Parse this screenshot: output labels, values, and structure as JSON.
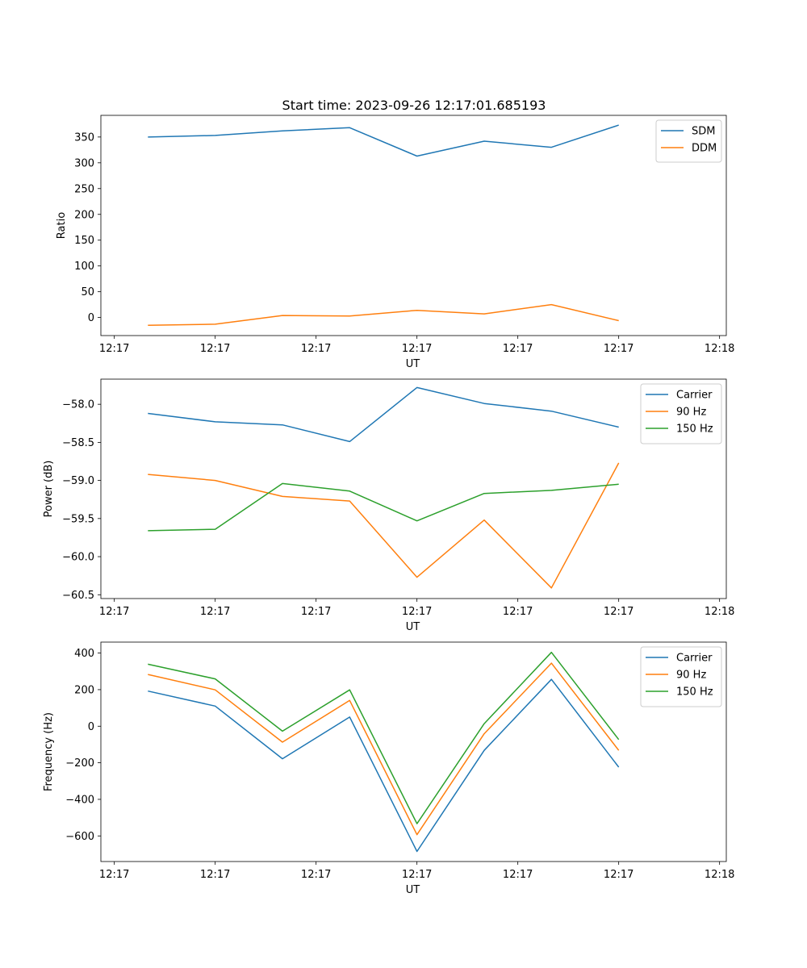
{
  "chart_data": [
    {
      "type": "line",
      "title": "Start time: 2023-09-26 12:17:01.685193",
      "xlabel": "UT",
      "ylabel": "Ratio",
      "xtick_labels": [
        "12:17",
        "12:17",
        "12:17",
        "12:17",
        "12:17",
        "12:17",
        "12:18"
      ],
      "xlim": [
        -0.7,
        8.6
      ],
      "ylim": [
        -35,
        392
      ],
      "yticks": [
        0,
        50,
        100,
        150,
        200,
        250,
        300,
        350
      ],
      "ytick_labels": [
        "0",
        "50",
        "100",
        "150",
        "200",
        "250",
        "300",
        "350"
      ],
      "x": [
        0,
        1,
        2,
        3,
        4,
        5,
        6,
        7
      ],
      "series": [
        {
          "name": "SDM",
          "color": "#1f77b4",
          "values": [
            350,
            353,
            362,
            368,
            313,
            342,
            330,
            373
          ]
        },
        {
          "name": "DDM",
          "color": "#ff7f0e",
          "values": [
            -15,
            -13,
            4,
            3,
            14,
            7,
            25,
            -6
          ]
        }
      ],
      "legend": "top-right",
      "grid": false
    },
    {
      "type": "line",
      "title": "",
      "xlabel": "UT",
      "ylabel": "Power (dB)",
      "xtick_labels": [
        "12:17",
        "12:17",
        "12:17",
        "12:17",
        "12:17",
        "12:17",
        "12:18"
      ],
      "xlim": [
        -0.7,
        8.6
      ],
      "ylim": [
        -60.55,
        -57.67
      ],
      "yticks": [
        -60.5,
        -60.0,
        -59.5,
        -59.0,
        -58.5,
        -58.0
      ],
      "ytick_labels": [
        "−60.5",
        "−60.0",
        "−59.5",
        "−59.0",
        "−58.5",
        "−58.0"
      ],
      "x": [
        0,
        1,
        2,
        3,
        4,
        5,
        6,
        7
      ],
      "series": [
        {
          "name": "Carrier",
          "color": "#1f77b4",
          "values": [
            -58.12,
            -58.23,
            -58.27,
            -58.49,
            -57.78,
            -57.99,
            -58.09,
            -58.3
          ]
        },
        {
          "name": "90 Hz",
          "color": "#ff7f0e",
          "values": [
            -58.92,
            -59.0,
            -59.21,
            -59.27,
            -60.27,
            -59.52,
            -60.41,
            -58.77
          ]
        },
        {
          "name": "150 Hz",
          "color": "#2ca02c",
          "values": [
            -59.66,
            -59.64,
            -59.04,
            -59.14,
            -59.53,
            -59.17,
            -59.13,
            -59.05
          ]
        }
      ],
      "legend": "top-right",
      "grid": false
    },
    {
      "type": "line",
      "title": "",
      "xlabel": "UT",
      "ylabel": "Frequency (Hz)",
      "xtick_labels": [
        "12:17",
        "12:17",
        "12:17",
        "12:17",
        "12:17",
        "12:17",
        "12:18"
      ],
      "xlim": [
        -0.7,
        8.6
      ],
      "ylim": [
        -740,
        460
      ],
      "yticks": [
        -600,
        -400,
        -200,
        0,
        200,
        400
      ],
      "ytick_labels": [
        "−600",
        "−400",
        "−200",
        "0",
        "200",
        "400"
      ],
      "x": [
        0,
        1,
        2,
        3,
        4,
        5,
        6,
        7
      ],
      "series": [
        {
          "name": "Carrier",
          "color": "#1f77b4",
          "values": [
            192,
            110,
            -178,
            50,
            -685,
            -132,
            256,
            -224
          ]
        },
        {
          "name": "90 Hz",
          "color": "#ff7f0e",
          "values": [
            283,
            199,
            -87,
            141,
            -593,
            -41,
            345,
            -132
          ]
        },
        {
          "name": "150 Hz",
          "color": "#2ca02c",
          "values": [
            339,
            259,
            -27,
            199,
            -533,
            14,
            404,
            -73
          ]
        }
      ],
      "legend": "top-right",
      "grid": false
    }
  ]
}
